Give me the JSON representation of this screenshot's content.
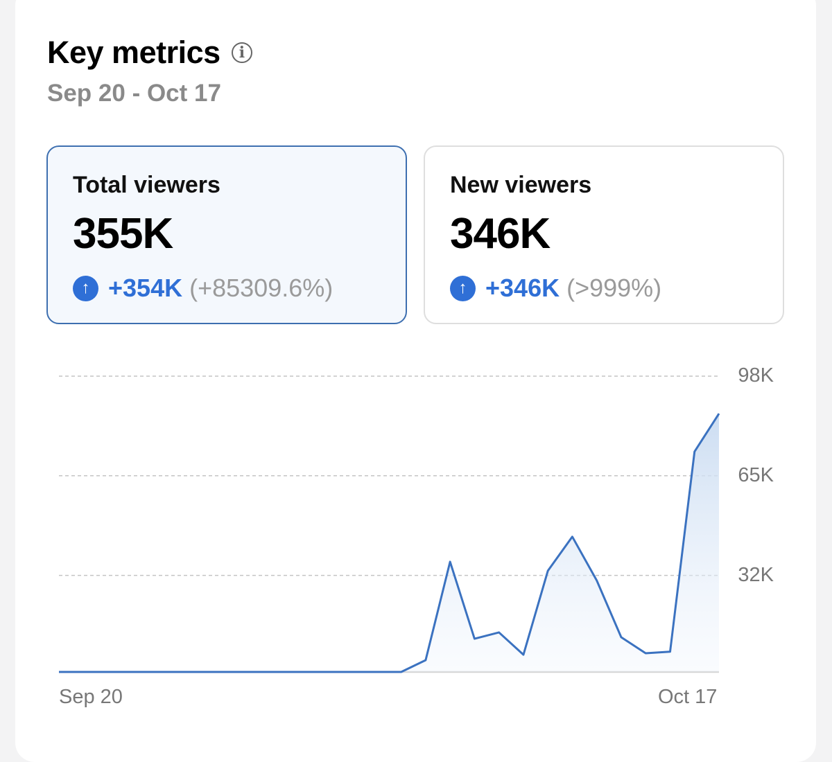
{
  "header": {
    "title": "Key metrics",
    "info_icon": "info-icon",
    "date_range": "Sep 20 - Oct 17"
  },
  "metrics": [
    {
      "label": "Total viewers",
      "value": "355K",
      "delta": "+354K",
      "pct": "(+85309.6%)",
      "selected": true
    },
    {
      "label": "New viewers",
      "value": "346K",
      "delta": "+346K",
      "pct": "(>999%)",
      "selected": false
    }
  ],
  "colors": {
    "accent": "#2f6fd6",
    "line": "#3b72c0",
    "selected_border": "#3d6fb0"
  },
  "chart_data": {
    "type": "area",
    "title": "Total viewers",
    "x_start": "Sep 20",
    "x_end": "Oct 17",
    "xtick_labels": [
      "Sep 20",
      "Oct 17"
    ],
    "ytick_labels": [
      "98K",
      "65K",
      "32K"
    ],
    "yticks": [
      98,
      65,
      32
    ],
    "ylim": [
      0,
      98
    ],
    "yunit": "K",
    "grid": true,
    "values": [
      0,
      0,
      0,
      0,
      0,
      0,
      0,
      0,
      0,
      0,
      0,
      0,
      0,
      0,
      0,
      3.9,
      36.5,
      11,
      13.1,
      5.7,
      33.5,
      44.8,
      30.3,
      11.5,
      6.2,
      6.7,
      73,
      85.6
    ]
  }
}
